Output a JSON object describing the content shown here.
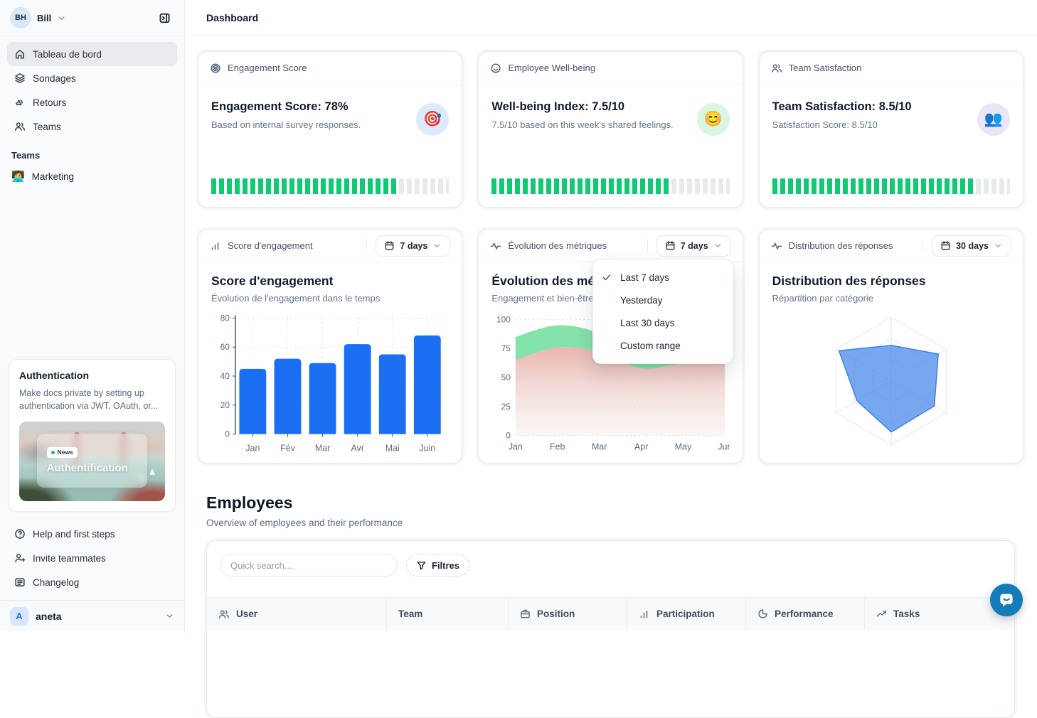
{
  "colors": {
    "accent": "#1a6ff3",
    "success": "#0fca73",
    "radar": "#4286e9",
    "chat": "#147cb8"
  },
  "sidebar": {
    "user": {
      "initials": "BH",
      "name": "Bill"
    },
    "nav": [
      {
        "label": "Tableau de bord",
        "icon": "home-icon",
        "active": true
      },
      {
        "label": "Sondages",
        "icon": "layers-icon",
        "active": false
      },
      {
        "label": "Retours",
        "icon": "megaphone-icon",
        "active": false
      },
      {
        "label": "Teams",
        "icon": "users-icon",
        "active": false
      }
    ],
    "teams_label": "Teams",
    "teams": [
      {
        "label": "Marketing",
        "emoji": "🧑‍💻"
      }
    ],
    "promo": {
      "title": "Authentication",
      "body": "Make docs private by setting up authentication via JWT, OAuth, or...",
      "badge": "News",
      "badge_dot_color": "#24b47e",
      "overlay_title": "Authentification"
    },
    "footer_nav": [
      {
        "label": "Help and first steps",
        "icon": "help-icon"
      },
      {
        "label": "Invite teammates",
        "icon": "user-plus-icon"
      },
      {
        "label": "Changelog",
        "icon": "changelog-icon"
      }
    ],
    "workspace": {
      "initial": "A",
      "name": "aneta"
    }
  },
  "header": {
    "title": "Dashboard"
  },
  "stat_cards": [
    {
      "header": "Engagement Score",
      "header_icon": "target-icon",
      "title": "Engagement Score: 78%",
      "subtitle": "Based on internal survey responses.",
      "emoji": "🎯",
      "emoji_bg": "#dbeafd",
      "progress_pct": 78
    },
    {
      "header": "Employee Well-being",
      "header_icon": "smile-icon",
      "title": "Well-being Index: 7.5/10",
      "subtitle": "7.5/10 based on this week's shared feelings.",
      "emoji": "😊",
      "emoji_bg": "#d9f6e3",
      "progress_pct": 75
    },
    {
      "header": "Team Satisfaction",
      "header_icon": "users-icon",
      "title": "Team Satisfaction: 8.5/10",
      "subtitle": "Satisfaction Score: 8.5/10",
      "emoji": "👥",
      "emoji_bg": "#ebe6f7",
      "progress_pct": 85
    }
  ],
  "chart_cards": [
    {
      "header": "Score d'engagement",
      "header_icon": "bar-chart-icon",
      "range_label": "7 days"
    },
    {
      "header": "Évolution des métriques",
      "header_icon": "activity-icon",
      "range_label": "7 days"
    },
    {
      "header": "Distribution des réponses",
      "header_icon": "activity-icon",
      "range_label": "30 days"
    }
  ],
  "chart_data": [
    {
      "type": "bar",
      "title": "Score d'engagement",
      "subtitle": "Évolution de l'engagement dans le temps",
      "categories": [
        "Jan",
        "Fév",
        "Mar",
        "Avr",
        "Mai",
        "Juin"
      ],
      "values": [
        45,
        52,
        49,
        62,
        55,
        68
      ],
      "ylim": [
        0,
        80
      ],
      "yticks": [
        0,
        20,
        40,
        60,
        80
      ],
      "bar_color": "#1a6ff3",
      "grid": "dotted"
    },
    {
      "type": "area",
      "title": "Évolution des métriques",
      "subtitle": "Engagement et bien-être",
      "categories": [
        "Jan",
        "Feb",
        "Mar",
        "Apr",
        "May",
        "Jun"
      ],
      "series": [
        {
          "name": "Engagement",
          "color": "#7de2a4",
          "values": [
            85,
            95,
            88,
            66,
            70,
            68
          ]
        },
        {
          "name": "Bien-être",
          "color": "#e6938c",
          "values": [
            65,
            76,
            72,
            58,
            62,
            63
          ]
        }
      ],
      "ylim": [
        0,
        100
      ],
      "yticks": [
        0,
        25,
        50,
        75,
        100
      ],
      "grid": "dotted"
    },
    {
      "type": "radar",
      "title": "Distribution des réponses",
      "subtitle": "Répartition par catégorie",
      "axes_count": 6,
      "levels": 3,
      "max": 1,
      "values": [
        0.56,
        0.85,
        0.78,
        0.8,
        0.62,
        0.95
      ],
      "fill_color": "#4286e9"
    }
  ],
  "dropdown_menu": {
    "items": [
      {
        "label": "Last 7 days",
        "checked": true
      },
      {
        "label": "Yesterday",
        "checked": false
      },
      {
        "label": "Last 30 days",
        "checked": false
      },
      {
        "label": "Custom range",
        "checked": false
      }
    ]
  },
  "employees": {
    "title": "Employees",
    "subtitle": "Overview of employees and their performance",
    "search_placeholder": "Quick search...",
    "filters_label": "Filtres",
    "columns": [
      {
        "label": "User",
        "icon": "users-icon"
      },
      {
        "label": "Team",
        "icon": null
      },
      {
        "label": "Position",
        "icon": "briefcase-icon"
      },
      {
        "label": "Participation",
        "icon": "bar-chart-icon"
      },
      {
        "label": "Performance",
        "icon": "pie-chart-icon"
      },
      {
        "label": "Tasks",
        "icon": "trending-up-icon"
      }
    ]
  }
}
